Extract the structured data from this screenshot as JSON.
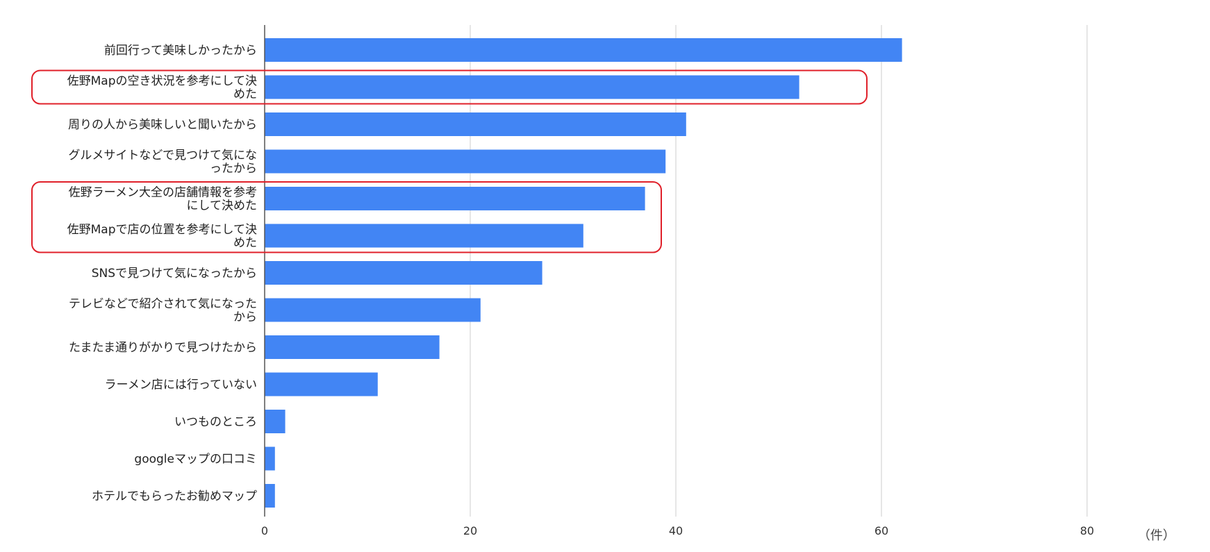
{
  "chart_data": {
    "type": "bar",
    "orientation": "horizontal",
    "categories": [
      [
        "前回行って美味しかったから"
      ],
      [
        "佐野Mapの空き状況を参考にして決",
        "めた"
      ],
      [
        "周りの人から美味しいと聞いたから"
      ],
      [
        "グルメサイトなどで見つけて気にな",
        "ったから"
      ],
      [
        "佐野ラーメン大全の店舗情報を参考",
        "にして決めた"
      ],
      [
        "佐野Mapで店の位置を参考にして決",
        "めた"
      ],
      [
        "SNSで見つけて気になったから"
      ],
      [
        "テレビなどで紹介されて気になった",
        "から"
      ],
      [
        "たまたま通りがかりで見つけたから"
      ],
      [
        "ラーメン店には行っていない"
      ],
      [
        "いつものところ"
      ],
      [
        "googleマップの口コミ"
      ],
      [
        "ホテルでもらったお勧めマップ"
      ]
    ],
    "values": [
      62,
      52,
      41,
      39,
      37,
      31,
      27,
      21,
      17,
      11,
      2,
      1,
      1
    ],
    "xlim": [
      0,
      80
    ],
    "xticks": [
      "0",
      "20",
      "40",
      "60",
      "80"
    ],
    "xtick_values": [
      0,
      20,
      40,
      60,
      80
    ],
    "unit_label": "（件）",
    "grid": true,
    "highlight_groups": [
      [
        1
      ],
      [
        4,
        5
      ]
    ],
    "colors": {
      "bar": "#4285f4",
      "grid": "#cccccc",
      "axis": "#555555",
      "highlight": "#e0202a"
    }
  }
}
